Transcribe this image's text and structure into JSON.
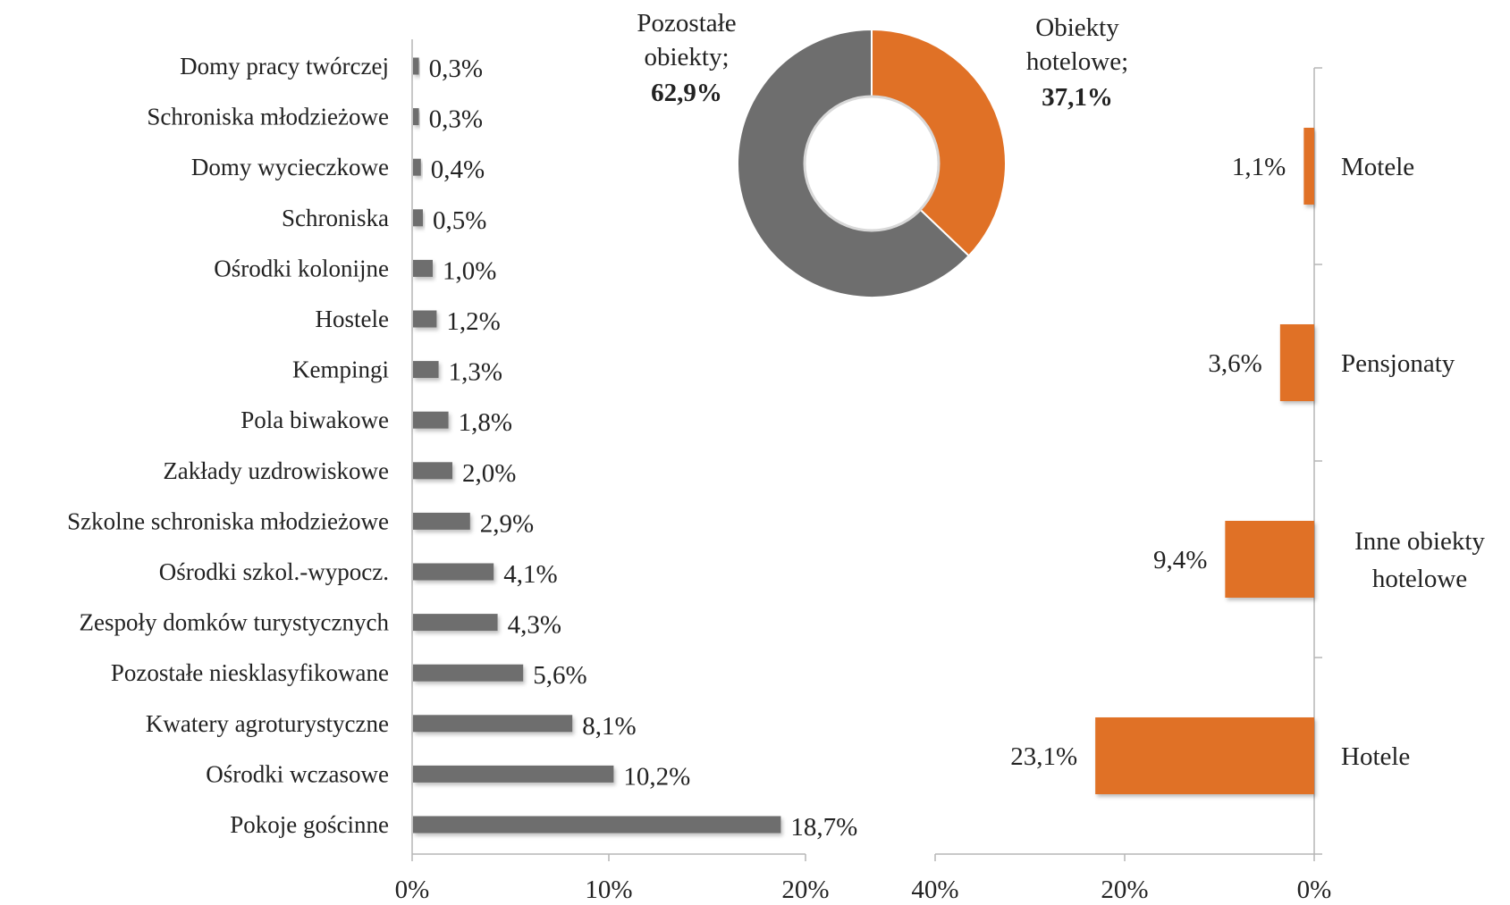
{
  "chart_data": [
    {
      "type": "pie",
      "variant": "donut",
      "slices": [
        {
          "name": "Obiekty hotelowe",
          "value": 37.1,
          "label_line1": "Obiekty",
          "label_line2": "hotelowe;",
          "value_label": "37,1%",
          "color": "#e07126"
        },
        {
          "name": "Pozostałe obiekty",
          "value": 62.9,
          "label_line1": "Pozostałe",
          "label_line2": "obiekty;",
          "value_label": "62,9%",
          "color": "#6e6e6e"
        }
      ]
    },
    {
      "type": "bar",
      "orientation": "horizontal",
      "color": "#6e6e6e",
      "categories": [
        "Domy pracy twórczej",
        "Schroniska młodzieżowe",
        "Domy wycieczkowe",
        "Schroniska",
        "Ośrodki kolonijne",
        "Hostele",
        "Kempingi",
        "Pola biwakowe",
        "Zakłady uzdrowiskowe",
        "Szkolne schroniska młodzieżowe",
        "Ośrodki szkol.-wypocz.",
        "Zespoły  domków turystycznych",
        "Pozostałe niesklasyfikowane",
        "Kwatery agroturystyczne",
        "Ośrodki wczasowe",
        "Pokoje gościnne"
      ],
      "values": [
        0.3,
        0.3,
        0.4,
        0.5,
        1.0,
        1.2,
        1.3,
        1.8,
        2.0,
        2.9,
        4.1,
        4.3,
        5.6,
        8.1,
        10.2,
        18.7
      ],
      "value_labels": [
        "0,3%",
        "0,3%",
        "0,4%",
        "0,5%",
        "1,0%",
        "1,2%",
        "1,3%",
        "1,8%",
        "2,0%",
        "2,9%",
        "4,1%",
        "4,3%",
        "5,6%",
        "8,1%",
        "10,2%",
        "18,7%"
      ],
      "xlim": [
        0,
        20
      ],
      "x_ticks": [
        0,
        10,
        20
      ],
      "x_tick_labels": [
        "0%",
        "10%",
        "20%"
      ]
    },
    {
      "type": "bar",
      "orientation": "horizontal",
      "direction": "reversed",
      "color": "#e07126",
      "categories": [
        "Motele",
        "Pensjonaty",
        "Inne obiekty hotelowe",
        "Hotele"
      ],
      "category_lines": [
        [
          "Motele"
        ],
        [
          "Pensjonaty"
        ],
        [
          "Inne obiekty",
          "hotelowe"
        ],
        [
          "Hotele"
        ]
      ],
      "values": [
        1.1,
        3.6,
        9.4,
        23.1
      ],
      "value_labels": [
        "1,1%",
        "3,6%",
        "9,4%",
        "23,1%"
      ],
      "xlim": [
        40,
        0
      ],
      "x_ticks": [
        40,
        20,
        0
      ],
      "x_tick_labels": [
        "40%",
        "20%",
        "0%"
      ]
    }
  ]
}
